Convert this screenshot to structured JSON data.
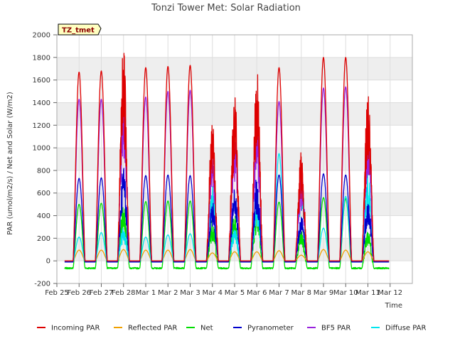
{
  "chart_data": {
    "type": "line",
    "title": "Tonzi Tower Met: Solar Radiation",
    "xlabel": "Time",
    "ylabel": "PAR (umol/m2/s) / Net and Solar (W/m2)",
    "badge": "TZ_tmet",
    "ylim": [
      -200,
      2000
    ],
    "yticks": [
      -200,
      0,
      200,
      400,
      600,
      800,
      1000,
      1200,
      1400,
      1600,
      1800,
      2000
    ],
    "xlim": [
      0,
      16
    ],
    "xticks": [
      "Feb 25",
      "Feb 26",
      "Feb 27",
      "Feb 28",
      "Mar 1",
      "Mar 2",
      "Mar 3",
      "Mar 4",
      "Mar 5",
      "Mar 6",
      "Mar 7",
      "Mar 8",
      "Mar 9",
      "Mar 10",
      "Mar 11",
      "Mar 12"
    ],
    "data_start_day": 0.35,
    "data_end_day": 14.95,
    "grid": true,
    "legend_position": "bottom",
    "series": [
      {
        "name": "Incoming PAR",
        "color": "#dd0000",
        "night": 0,
        "peaks": [
          [
            1.0,
            1670
          ],
          [
            2.0,
            1680
          ],
          [
            3.0,
            1950
          ],
          [
            4.0,
            1710
          ],
          [
            5.0,
            1720
          ],
          [
            6.0,
            1730
          ],
          [
            7.0,
            1270
          ],
          [
            8.0,
            1490
          ],
          [
            9.0,
            1710
          ],
          [
            10.0,
            1710
          ],
          [
            11.0,
            980
          ],
          [
            12.0,
            1800
          ],
          [
            13.0,
            1800
          ],
          [
            14.0,
            1550
          ]
        ]
      },
      {
        "name": "Reflected PAR",
        "color": "#f0a000",
        "night": 0,
        "peaks": [
          [
            1.0,
            95
          ],
          [
            2.0,
            95
          ],
          [
            3.0,
            100
          ],
          [
            4.0,
            95
          ],
          [
            5.0,
            95
          ],
          [
            6.0,
            100
          ],
          [
            7.0,
            70
          ],
          [
            8.0,
            80
          ],
          [
            9.0,
            80
          ],
          [
            10.0,
            90
          ],
          [
            11.0,
            50
          ],
          [
            12.0,
            100
          ],
          [
            13.0,
            95
          ],
          [
            14.0,
            80
          ]
        ]
      },
      {
        "name": "Net",
        "color": "#00dd00",
        "night": -65,
        "peaks": [
          [
            1.0,
            500
          ],
          [
            2.0,
            510
          ],
          [
            3.0,
            530
          ],
          [
            4.0,
            525
          ],
          [
            5.0,
            530
          ],
          [
            6.0,
            530
          ],
          [
            7.0,
            370
          ],
          [
            8.0,
            420
          ],
          [
            9.0,
            500
          ],
          [
            10.0,
            520
          ],
          [
            11.0,
            270
          ],
          [
            12.0,
            560
          ],
          [
            13.0,
            550
          ],
          [
            14.0,
            290
          ]
        ]
      },
      {
        "name": "Pyranometer",
        "color": "#0000cc",
        "night": -10,
        "peaks": [
          [
            1.0,
            730
          ],
          [
            2.0,
            735
          ],
          [
            3.0,
            870
          ],
          [
            4.0,
            755
          ],
          [
            5.0,
            760
          ],
          [
            6.0,
            755
          ],
          [
            7.0,
            550
          ],
          [
            8.0,
            650
          ],
          [
            9.0,
            750
          ],
          [
            10.0,
            760
          ],
          [
            11.0,
            400
          ],
          [
            12.0,
            770
          ],
          [
            13.0,
            760
          ],
          [
            14.0,
            560
          ]
        ]
      },
      {
        "name": "BF5 PAR",
        "color": "#9922dd",
        "night": 0,
        "peaks": [
          [
            1.0,
            1430
          ],
          [
            2.0,
            1430
          ],
          [
            3.0,
            1630
          ],
          [
            4.0,
            1450
          ],
          [
            5.0,
            1500
          ],
          [
            6.0,
            1510
          ],
          [
            7.0,
            1030
          ],
          [
            8.0,
            1240
          ],
          [
            9.0,
            1350
          ],
          [
            10.0,
            1410
          ],
          [
            11.0,
            790
          ],
          [
            12.0,
            1530
          ],
          [
            13.0,
            1540
          ],
          [
            14.0,
            1270
          ]
        ]
      },
      {
        "name": "Diffuse PAR",
        "color": "#00e5ee",
        "night": -10,
        "peaks": [
          [
            1.0,
            210
          ],
          [
            2.0,
            250
          ],
          [
            3.0,
            300
          ],
          [
            4.0,
            210
          ],
          [
            5.0,
            230
          ],
          [
            6.0,
            240
          ],
          [
            7.0,
            700
          ],
          [
            8.0,
            300
          ],
          [
            9.0,
            580
          ],
          [
            10.0,
            950
          ],
          [
            11.0,
            780
          ],
          [
            12.0,
            290
          ],
          [
            13.0,
            570
          ],
          [
            14.0,
            800
          ]
        ]
      }
    ]
  }
}
